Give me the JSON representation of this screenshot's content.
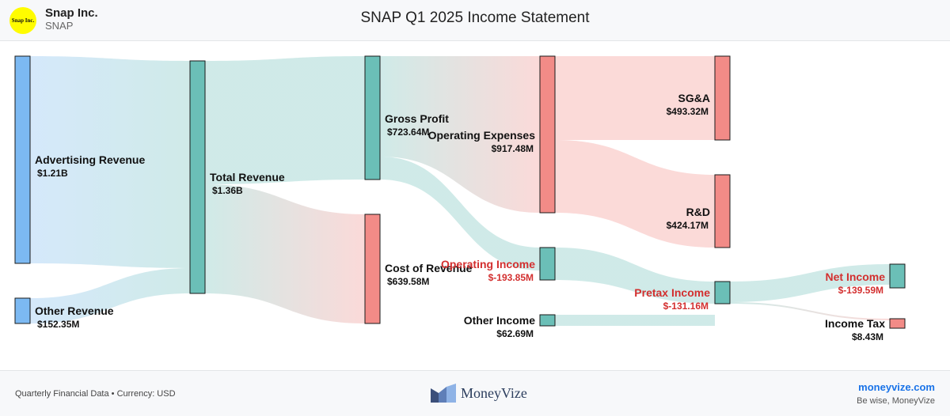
{
  "header": {
    "logo_text": "Snap Inc.",
    "company": "Snap Inc.",
    "ticker": "SNAP",
    "title": "SNAP Q1 2025 Income Statement"
  },
  "chart_data": {
    "type": "sankey",
    "title": "SNAP Q1 2025 Income Statement",
    "unit": "USD",
    "colors": {
      "revenue": "#7cb9f2",
      "profit": "#6bbfb7",
      "expense": "#f28b87"
    },
    "nodes": [
      {
        "id": "advertising_revenue",
        "label": "Advertising Revenue",
        "value": 1210,
        "display": "$1.21B",
        "kind": "revenue"
      },
      {
        "id": "other_revenue",
        "label": "Other Revenue",
        "value": 152.35,
        "display": "$152.35M",
        "kind": "revenue"
      },
      {
        "id": "total_revenue",
        "label": "Total Revenue",
        "value": 1360,
        "display": "$1.36B",
        "kind": "profit"
      },
      {
        "id": "gross_profit",
        "label": "Gross Profit",
        "value": 723.64,
        "display": "$723.64M",
        "kind": "profit"
      },
      {
        "id": "cost_of_revenue",
        "label": "Cost of Revenue",
        "value": 639.58,
        "display": "$639.58M",
        "kind": "expense"
      },
      {
        "id": "operating_expenses",
        "label": "Operating Expenses",
        "value": 917.48,
        "display": "$917.48M",
        "kind": "expense"
      },
      {
        "id": "operating_income",
        "label": "Operating Income",
        "value": -193.85,
        "display": "$-193.85M",
        "kind": "profit",
        "negative": true
      },
      {
        "id": "other_income",
        "label": "Other Income",
        "value": 62.69,
        "display": "$62.69M",
        "kind": "profit"
      },
      {
        "id": "sga",
        "label": "SG&A",
        "value": 493.32,
        "display": "$493.32M",
        "kind": "expense"
      },
      {
        "id": "rnd",
        "label": "R&D",
        "value": 424.17,
        "display": "$424.17M",
        "kind": "expense"
      },
      {
        "id": "pretax_income",
        "label": "Pretax Income",
        "value": -131.16,
        "display": "$-131.16M",
        "kind": "profit",
        "negative": true
      },
      {
        "id": "net_income",
        "label": "Net Income",
        "value": -139.59,
        "display": "$-139.59M",
        "kind": "profit",
        "negative": true
      },
      {
        "id": "income_tax",
        "label": "Income Tax",
        "value": 8.43,
        "display": "$8.43M",
        "kind": "expense"
      }
    ],
    "links": [
      {
        "source": "advertising_revenue",
        "target": "total_revenue",
        "value": 1210
      },
      {
        "source": "other_revenue",
        "target": "total_revenue",
        "value": 152.35
      },
      {
        "source": "total_revenue",
        "target": "gross_profit",
        "value": 723.64
      },
      {
        "source": "total_revenue",
        "target": "cost_of_revenue",
        "value": 639.58
      },
      {
        "source": "gross_profit",
        "target": "operating_expenses",
        "value": 917.48
      },
      {
        "source": "gross_profit",
        "target": "operating_income",
        "value": 193.85
      },
      {
        "source": "operating_expenses",
        "target": "sga",
        "value": 493.32
      },
      {
        "source": "operating_expenses",
        "target": "rnd",
        "value": 424.17
      },
      {
        "source": "operating_income",
        "target": "pretax_income",
        "value": 131.16
      },
      {
        "source": "other_income",
        "target": "pretax_income",
        "value": 62.69
      },
      {
        "source": "pretax_income",
        "target": "net_income",
        "value": 139.59
      },
      {
        "source": "pretax_income",
        "target": "income_tax",
        "value": 8.43
      }
    ]
  },
  "footer": {
    "note": "Quarterly Financial Data • Currency: USD",
    "brand": "MoneyVize",
    "site": "moneyvize.com",
    "tagline": "Be wise, MoneyVize"
  }
}
